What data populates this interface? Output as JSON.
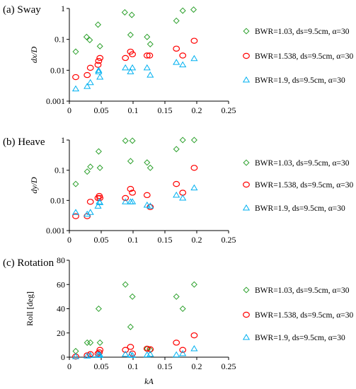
{
  "chart_data": [
    {
      "type": "scatter",
      "title": "(a) Sway",
      "xlabel": "",
      "ylabel": "dx/D",
      "xlim": [
        0,
        0.25
      ],
      "ylim": [
        0.001,
        1
      ],
      "yscale": "log",
      "xticks": [
        "0",
        "0.05",
        "0.1",
        "0.15",
        "0.2",
        "0.25"
      ],
      "yticks": [
        "0.001",
        "0.01",
        "0.1",
        "1"
      ],
      "legend_position": "right",
      "series": [
        {
          "name": "BWR=1.03,  ds=9.5cm,  α=30",
          "marker": "diamond",
          "color": "#2ca02c",
          "points": [
            [
              0.01,
              0.04
            ],
            [
              0.027,
              0.12
            ],
            [
              0.032,
              0.095
            ],
            [
              0.045,
              0.3
            ],
            [
              0.048,
              0.06
            ],
            [
              0.087,
              0.75
            ],
            [
              0.096,
              0.14
            ],
            [
              0.098,
              0.62
            ],
            [
              0.122,
              0.12
            ],
            [
              0.127,
              0.07
            ],
            [
              0.168,
              0.4
            ],
            [
              0.178,
              0.85
            ],
            [
              0.195,
              0.92
            ]
          ]
        },
        {
          "name": "BWR=1.538,  ds=9.5cm,  α=30",
          "marker": "circle",
          "color": "#ff0000",
          "points": [
            [
              0.01,
              0.006
            ],
            [
              0.028,
              0.007
            ],
            [
              0.033,
              0.012
            ],
            [
              0.045,
              0.015
            ],
            [
              0.046,
              0.02
            ],
            [
              0.048,
              0.025
            ],
            [
              0.088,
              0.025
            ],
            [
              0.096,
              0.04
            ],
            [
              0.099,
              0.033
            ],
            [
              0.122,
              0.03
            ],
            [
              0.126,
              0.03
            ],
            [
              0.168,
              0.05
            ],
            [
              0.178,
              0.03
            ],
            [
              0.196,
              0.09
            ]
          ]
        },
        {
          "name": "BWR=1.9,  ds=9.5cm,  α=30",
          "marker": "triangle",
          "color": "#00b0f0",
          "points": [
            [
              0.01,
              0.0025
            ],
            [
              0.028,
              0.003
            ],
            [
              0.033,
              0.004
            ],
            [
              0.046,
              0.01
            ],
            [
              0.046,
              0.009
            ],
            [
              0.048,
              0.006
            ],
            [
              0.088,
              0.012
            ],
            [
              0.096,
              0.009
            ],
            [
              0.099,
              0.012
            ],
            [
              0.122,
              0.012
            ],
            [
              0.127,
              0.007
            ],
            [
              0.168,
              0.018
            ],
            [
              0.178,
              0.015
            ],
            [
              0.196,
              0.024
            ]
          ]
        }
      ]
    },
    {
      "type": "scatter",
      "title": "(b) Heave",
      "xlabel": "",
      "ylabel": "dy/D",
      "xlim": [
        0,
        0.25
      ],
      "ylim": [
        0.001,
        1
      ],
      "yscale": "log",
      "xticks": [
        "0",
        "0.05",
        "0.1",
        "0.15",
        "0.2",
        "0.25"
      ],
      "yticks": [
        "0.001",
        "0.01",
        "0.1",
        "1"
      ],
      "legend_position": "right",
      "series": [
        {
          "name": "BWR=1.03,  ds=9.5cm,  α=30",
          "marker": "diamond",
          "color": "#2ca02c",
          "points": [
            [
              0.01,
              0.035
            ],
            [
              0.028,
              0.09
            ],
            [
              0.033,
              0.13
            ],
            [
              0.046,
              0.42
            ],
            [
              0.048,
              0.12
            ],
            [
              0.088,
              0.95
            ],
            [
              0.096,
              0.2
            ],
            [
              0.099,
              0.95
            ],
            [
              0.122,
              0.18
            ],
            [
              0.127,
              0.12
            ],
            [
              0.168,
              0.5
            ],
            [
              0.178,
              1.0
            ],
            [
              0.196,
              1.0
            ]
          ]
        },
        {
          "name": "BWR=1.538,  ds=9.5cm,  α=30",
          "marker": "circle",
          "color": "#ff0000",
          "points": [
            [
              0.01,
              0.003
            ],
            [
              0.028,
              0.003
            ],
            [
              0.033,
              0.009
            ],
            [
              0.045,
              0.012
            ],
            [
              0.047,
              0.014
            ],
            [
              0.048,
              0.012
            ],
            [
              0.088,
              0.012
            ],
            [
              0.096,
              0.024
            ],
            [
              0.099,
              0.018
            ],
            [
              0.122,
              0.015
            ],
            [
              0.127,
              0.006
            ],
            [
              0.168,
              0.035
            ],
            [
              0.178,
              0.018
            ],
            [
              0.196,
              0.12
            ]
          ]
        },
        {
          "name": "BWR=1.9,  ds=9.5cm,  α=30",
          "marker": "triangle",
          "color": "#00b0f0",
          "points": [
            [
              0.01,
              0.004
            ],
            [
              0.028,
              0.0035
            ],
            [
              0.033,
              0.004
            ],
            [
              0.045,
              0.0065
            ],
            [
              0.047,
              0.009
            ],
            [
              0.048,
              0.0085
            ],
            [
              0.088,
              0.009
            ],
            [
              0.096,
              0.009
            ],
            [
              0.099,
              0.009
            ],
            [
              0.122,
              0.007
            ],
            [
              0.127,
              0.0065
            ],
            [
              0.168,
              0.015
            ],
            [
              0.178,
              0.012
            ],
            [
              0.196,
              0.026
            ]
          ]
        }
      ]
    },
    {
      "type": "scatter",
      "title": "(c) Rotation",
      "xlabel": "kA",
      "ylabel": "Roll [deg]",
      "xlim": [
        0,
        0.25
      ],
      "ylim": [
        0,
        80
      ],
      "yscale": "linear",
      "xticks": [
        "0",
        "0.05",
        "0.1",
        "0.15",
        "0.2",
        "0.25"
      ],
      "yticks": [
        "0",
        "20",
        "40",
        "60",
        "80"
      ],
      "legend_position": "right",
      "series": [
        {
          "name": "BWR=1.03,  ds=9.5cm,  α=30",
          "marker": "diamond",
          "color": "#2ca02c",
          "points": [
            [
              0.01,
              5
            ],
            [
              0.028,
              12
            ],
            [
              0.033,
              12
            ],
            [
              0.046,
              40
            ],
            [
              0.048,
              12
            ],
            [
              0.088,
              60
            ],
            [
              0.096,
              25
            ],
            [
              0.099,
              50
            ],
            [
              0.122,
              7
            ],
            [
              0.127,
              6
            ],
            [
              0.168,
              50
            ],
            [
              0.178,
              40
            ],
            [
              0.196,
              60
            ]
          ]
        },
        {
          "name": "BWR=1.538,  ds=9.5cm,  α=30",
          "marker": "circle",
          "color": "#ff0000",
          "points": [
            [
              0.01,
              0.5
            ],
            [
              0.028,
              1.5
            ],
            [
              0.033,
              2.5
            ],
            [
              0.045,
              3
            ],
            [
              0.047,
              4
            ],
            [
              0.048,
              6
            ],
            [
              0.088,
              6
            ],
            [
              0.096,
              8.5
            ],
            [
              0.099,
              3
            ],
            [
              0.122,
              7
            ],
            [
              0.127,
              6.5
            ],
            [
              0.168,
              12
            ],
            [
              0.178,
              6
            ],
            [
              0.196,
              18
            ]
          ]
        },
        {
          "name": "BWR=1.9,  ds=9.5cm,  α=30",
          "marker": "triangle",
          "color": "#00b0f0",
          "points": [
            [
              0.01,
              0.5
            ],
            [
              0.028,
              1
            ],
            [
              0.033,
              1.5
            ],
            [
              0.045,
              2
            ],
            [
              0.047,
              1.5
            ],
            [
              0.048,
              2
            ],
            [
              0.088,
              2.5
            ],
            [
              0.096,
              2
            ],
            [
              0.099,
              1.5
            ],
            [
              0.122,
              2
            ],
            [
              0.127,
              2.5
            ],
            [
              0.168,
              2
            ],
            [
              0.178,
              3
            ],
            [
              0.196,
              7
            ]
          ]
        }
      ]
    }
  ]
}
